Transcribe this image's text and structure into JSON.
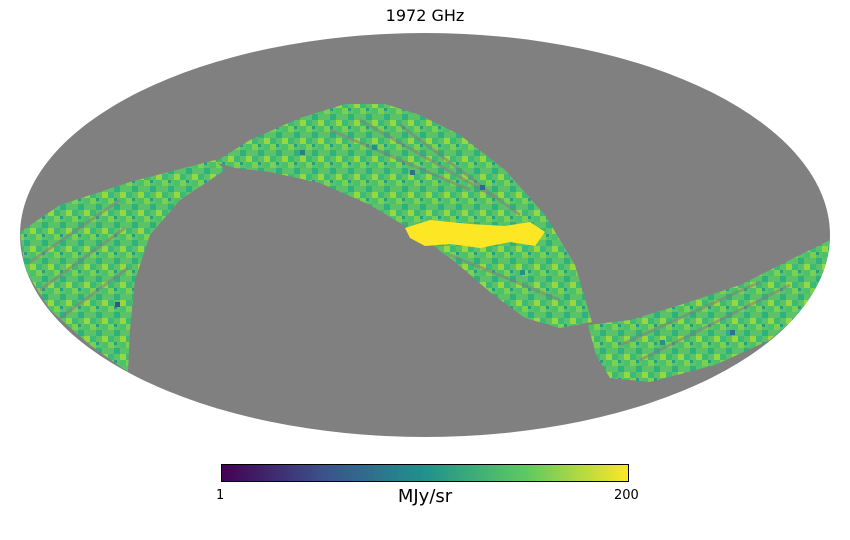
{
  "map": {
    "title": "1972 GHz",
    "projection": "mollweide",
    "unseen_color": "#808080",
    "colormap": "viridis",
    "hot_color": "#fde725"
  },
  "colorbar": {
    "min_label": "1",
    "max_label": "200",
    "unit": "MJy/sr",
    "colors": [
      "#440154",
      "#3b528b",
      "#21918c",
      "#5ec962",
      "#fde725"
    ]
  }
}
